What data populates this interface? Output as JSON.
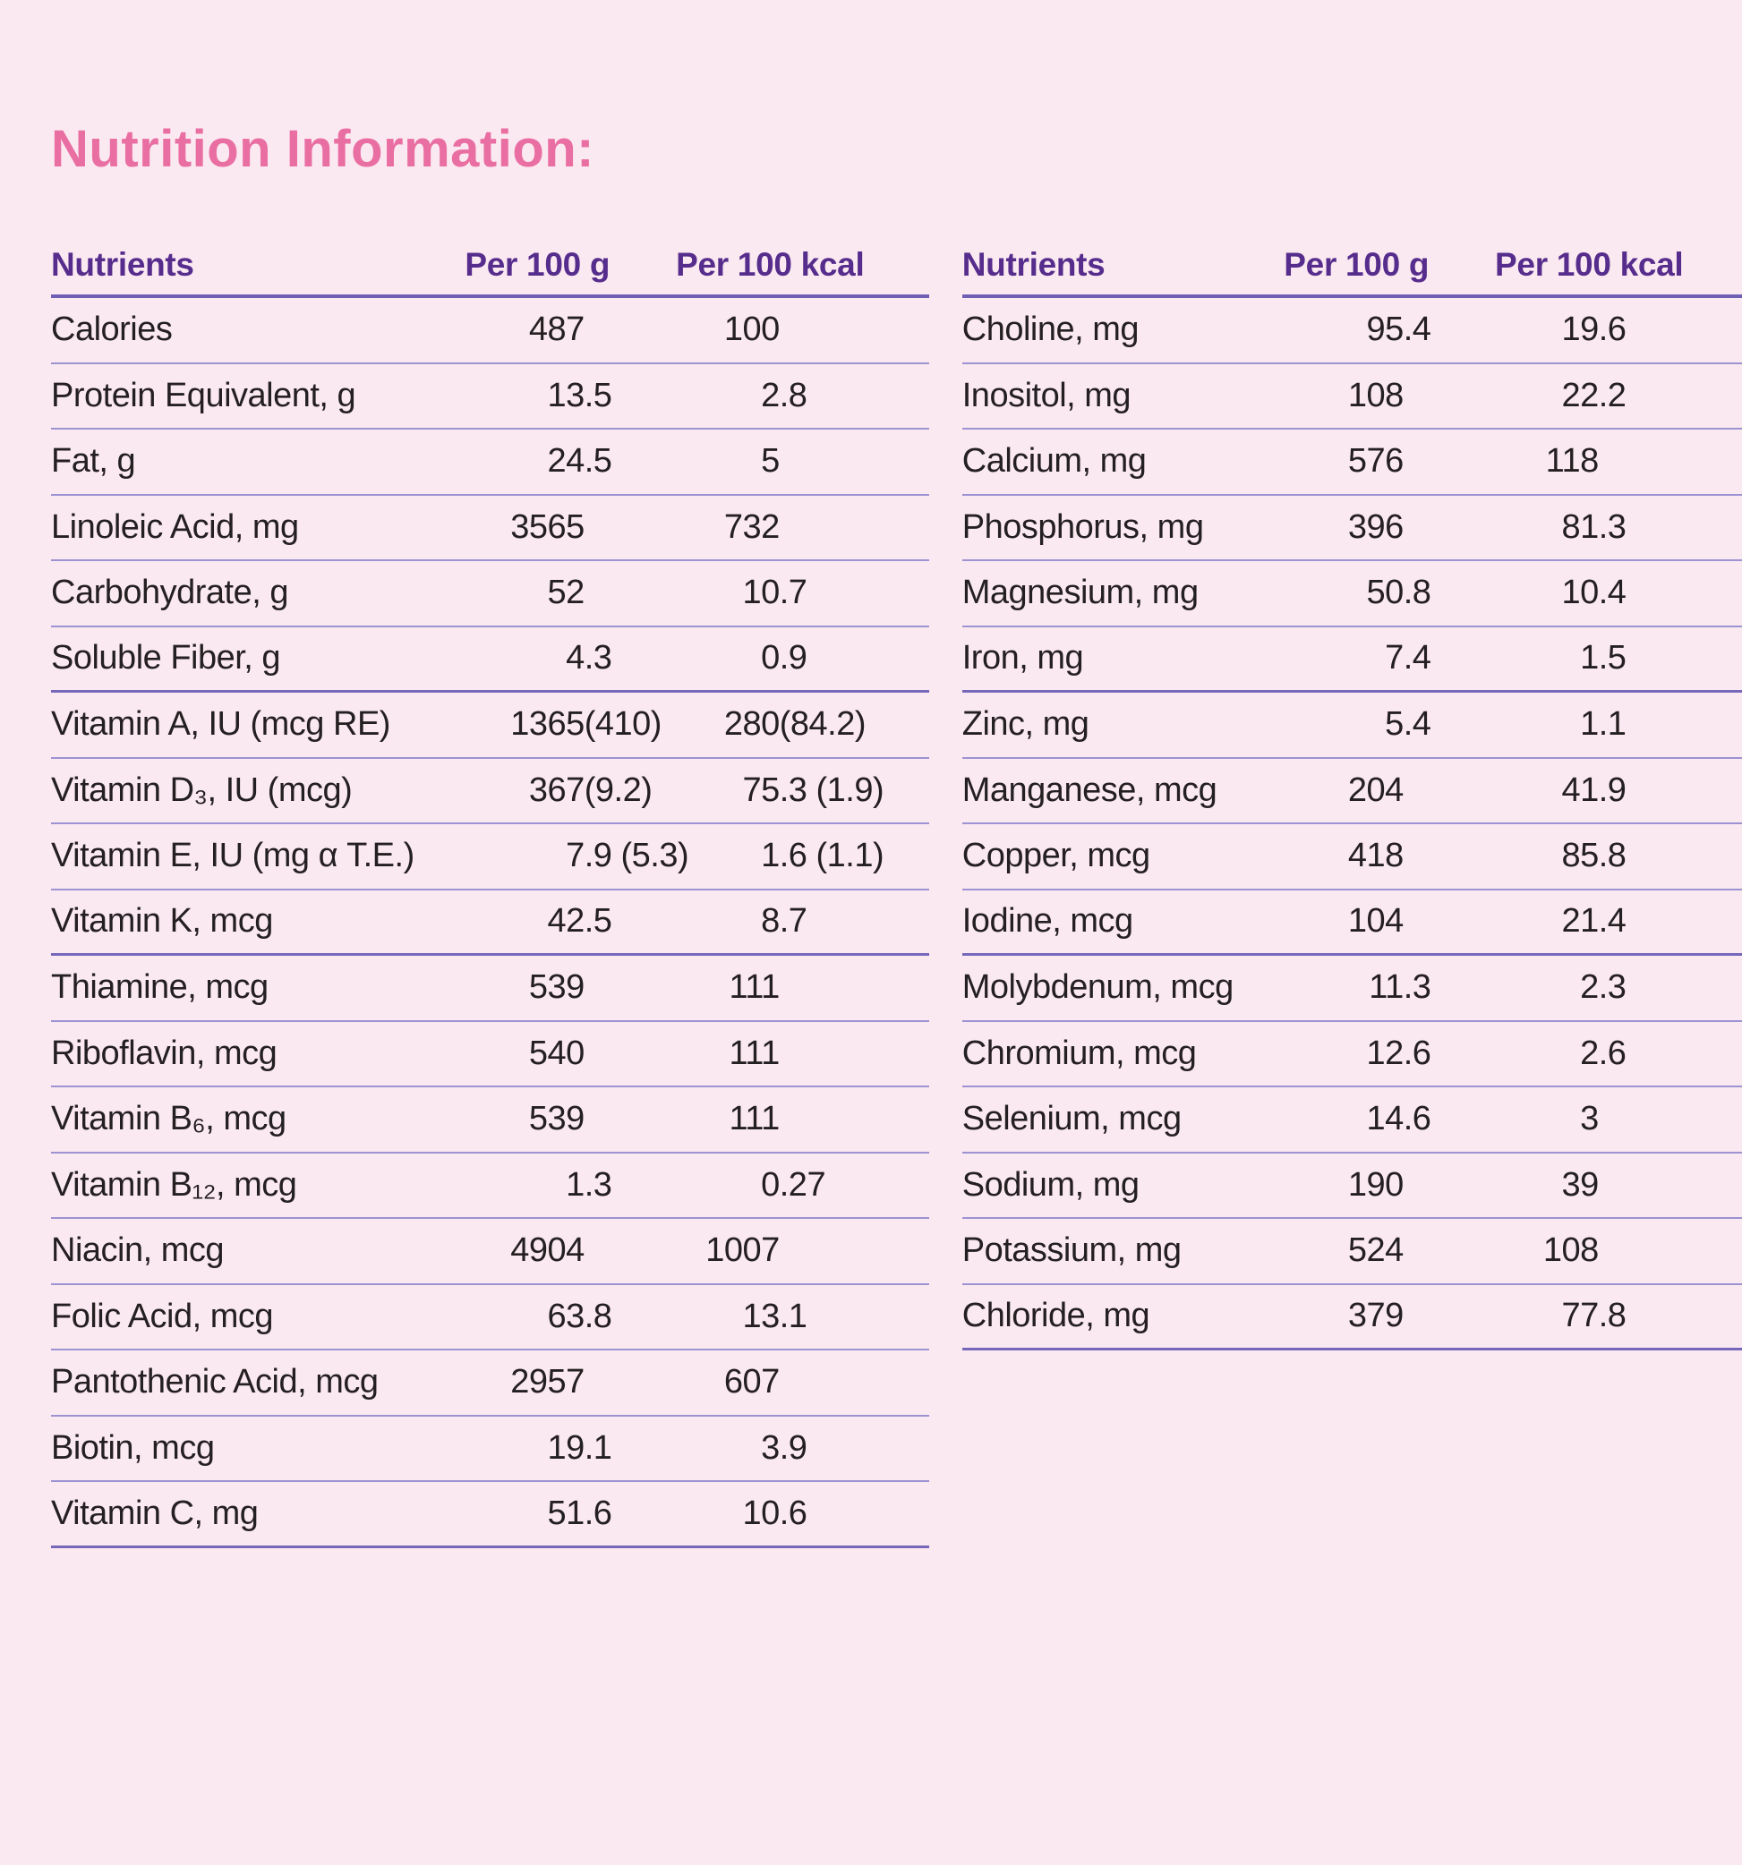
{
  "title": "Nutrition Information:",
  "colors": {
    "background": "#fbe9f1",
    "title_pink": "#e96ea2",
    "header_purple": "#562d8c",
    "body_text": "#241f21",
    "divider": "#9d92d2",
    "divider_strong": "#7667ba"
  },
  "tables": [
    {
      "headers": {
        "nutrient": "Nutrients",
        "per100g": "Per 100 g",
        "per100kcal": "Per 100 kcal"
      },
      "rows": [
        {
          "nutrient": "Calories",
          "per100g": "487",
          "per100kcal": "100"
        },
        {
          "nutrient": "Protein Equivalent, g",
          "per100g": "13.5",
          "per100kcal": "2.8"
        },
        {
          "nutrient": "Fat, g",
          "per100g": "24.5",
          "per100kcal": "5"
        },
        {
          "nutrient": "Linoleic Acid, mg",
          "per100g": "3565",
          "per100kcal": "732"
        },
        {
          "nutrient": "Carbohydrate, g",
          "per100g": "52",
          "per100kcal": "10.7"
        },
        {
          "nutrient": "Soluble Fiber, g",
          "per100g": "4.3",
          "per100kcal": "0.9",
          "strong": true
        },
        {
          "nutrient": "Vitamin A, IU (mcg RE)",
          "per100g": "1365 (410)",
          "per100kcal": "280 (84.2)"
        },
        {
          "nutrient": "Vitamin D₃, IU (mcg)",
          "per100g": "367 (9.2)",
          "per100kcal": "75.3 (1.9)"
        },
        {
          "nutrient": "Vitamin E, IU (mg α T.E.)",
          "per100g": "7.9 (5.3)",
          "per100kcal": "1.6 (1.1)"
        },
        {
          "nutrient": "Vitamin K, mcg",
          "per100g": "42.5",
          "per100kcal": "8.7",
          "strong": true
        },
        {
          "nutrient": "Thiamine, mcg",
          "per100g": "539",
          "per100kcal": "111"
        },
        {
          "nutrient": "Riboflavin, mcg",
          "per100g": "540",
          "per100kcal": "111"
        },
        {
          "nutrient": "Vitamin B₆, mcg",
          "per100g": "539",
          "per100kcal": "111"
        },
        {
          "nutrient": "Vitamin B₁₂, mcg",
          "per100g": "1.3",
          "per100kcal": "0.27"
        },
        {
          "nutrient": "Niacin, mcg",
          "per100g": "4904",
          "per100kcal": "1007"
        },
        {
          "nutrient": "Folic Acid, mcg",
          "per100g": "63.8",
          "per100kcal": "13.1"
        },
        {
          "nutrient": "Pantothenic Acid, mcg",
          "per100g": "2957",
          "per100kcal": "607"
        },
        {
          "nutrient": "Biotin, mcg",
          "per100g": "19.1",
          "per100kcal": "3.9"
        },
        {
          "nutrient": "Vitamin C, mg",
          "per100g": "51.6",
          "per100kcal": "10.6",
          "strong": true
        }
      ]
    },
    {
      "headers": {
        "nutrient": "Nutrients",
        "per100g": "Per 100 g",
        "per100kcal": "Per 100 kcal"
      },
      "rows": [
        {
          "nutrient": "Choline, mg",
          "per100g": "95.4",
          "per100kcal": "19.6"
        },
        {
          "nutrient": "Inositol, mg",
          "per100g": "108",
          "per100kcal": "22.2"
        },
        {
          "nutrient": "Calcium, mg",
          "per100g": "576",
          "per100kcal": "118"
        },
        {
          "nutrient": "Phosphorus, mg",
          "per100g": "396",
          "per100kcal": "81.3"
        },
        {
          "nutrient": "Magnesium, mg",
          "per100g": "50.8",
          "per100kcal": "10.4"
        },
        {
          "nutrient": "Iron, mg",
          "per100g": "7.4",
          "per100kcal": "1.5",
          "strong": true
        },
        {
          "nutrient": "Zinc, mg",
          "per100g": "5.4",
          "per100kcal": "1.1"
        },
        {
          "nutrient": "Manganese, mcg",
          "per100g": "204",
          "per100kcal": "41.9"
        },
        {
          "nutrient": "Copper, mcg",
          "per100g": "418",
          "per100kcal": "85.8"
        },
        {
          "nutrient": "Iodine, mcg",
          "per100g": "104",
          "per100kcal": "21.4",
          "strong": true
        },
        {
          "nutrient": "Molybdenum, mcg",
          "per100g": "11.3",
          "per100kcal": "2.3"
        },
        {
          "nutrient": "Chromium, mcg",
          "per100g": "12.6",
          "per100kcal": "2.6"
        },
        {
          "nutrient": "Selenium, mcg",
          "per100g": "14.6",
          "per100kcal": "3"
        },
        {
          "nutrient": "Sodium, mg",
          "per100g": "190",
          "per100kcal": "39"
        },
        {
          "nutrient": "Potassium, mg",
          "per100g": "524",
          "per100kcal": "108"
        },
        {
          "nutrient": "Chloride, mg",
          "per100g": "379",
          "per100kcal": "77.8",
          "strong": true
        }
      ]
    }
  ]
}
